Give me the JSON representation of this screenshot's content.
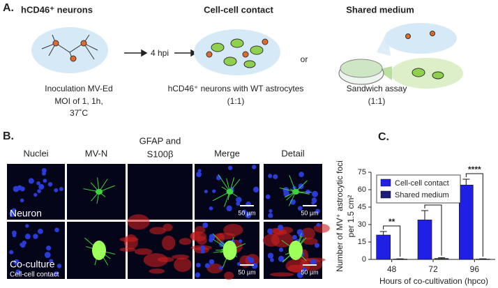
{
  "panel_a": {
    "label": "A.",
    "neurons": {
      "title": "hCD46⁺ neurons",
      "caption": [
        "Inoculation MV-Ed",
        "MOI of 1, 1h,",
        "37˚C"
      ]
    },
    "arrow_label": "4 hpi",
    "contact": {
      "title": "Cell-cell contact",
      "caption": [
        "hCD46⁺ neurons with WT astrocytes",
        "(1:1)"
      ]
    },
    "or": "or",
    "shared": {
      "title": "Shared medium",
      "caption": [
        "Sandwich assay",
        "(1:1)"
      ]
    }
  },
  "panel_b": {
    "label": "B.",
    "columns": [
      [
        "Nuclei"
      ],
      [
        "MV-N"
      ],
      [
        "GFAP and",
        "S100β"
      ],
      [
        "Merge"
      ],
      [
        "Detail"
      ]
    ],
    "rows": [
      [
        "Neuron"
      ],
      [
        "Co-culture",
        "Cell-cell contact"
      ]
    ],
    "scale_bar": "50 µm"
  },
  "chart_data": {
    "type": "bar",
    "label": "C.",
    "ylabel": [
      "Number of MV⁺ astrocytic foci",
      "per 1.5 cm²"
    ],
    "xlabel": "Hours of co-cultivation (hpco)",
    "categories": [
      "48",
      "72",
      "96"
    ],
    "series": [
      {
        "name": "Cell-cell contact",
        "color": "#1f1fe6",
        "values": [
          21,
          34,
          64
        ],
        "errors": [
          3,
          8,
          5
        ]
      },
      {
        "name": "Shared medium",
        "color": "#1c1c78",
        "values": [
          0.3,
          0.8,
          0.3
        ],
        "errors": [
          0.2,
          0.6,
          0.2
        ]
      }
    ],
    "annotations": [
      "**",
      "****",
      "****"
    ],
    "ylim": [
      0,
      75
    ],
    "yticks": [
      0,
      15,
      30,
      45,
      60,
      75
    ],
    "legend": "upper left"
  }
}
